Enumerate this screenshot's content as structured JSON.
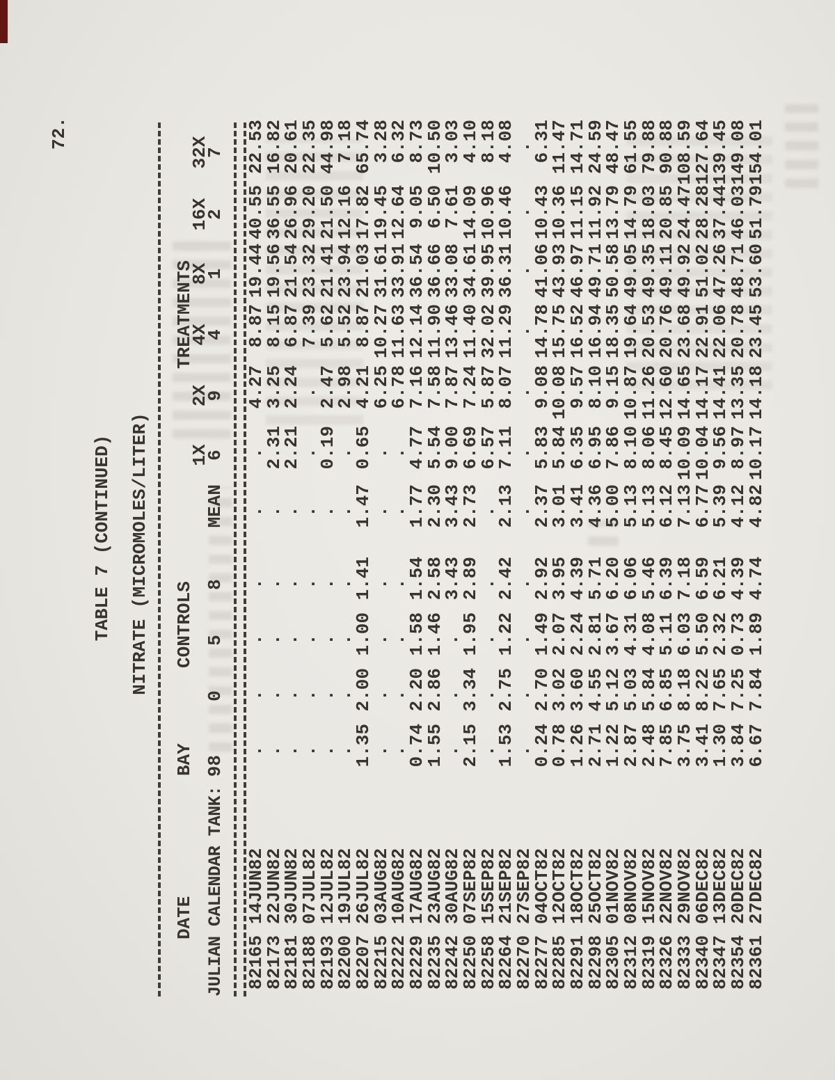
{
  "page": {
    "number": "72."
  },
  "table": {
    "title_line1": "TABLE 7 (CONTINUED)",
    "title_line2": "NITRATE (MICROMOLES/LITER)",
    "groups": {
      "date": "DATE",
      "bay": "BAY",
      "controls": "CONTROLS",
      "treatments": "TREATMENTS"
    },
    "treatment_labels": [
      "1X",
      "2X",
      "4X",
      "8X",
      "16X",
      "32X"
    ],
    "row_header_label": "JULIAN CALENDAR TANK:",
    "tank_numbers": [
      "98",
      "0",
      "5",
      "8",
      "MEAN",
      "6",
      "9",
      "4",
      "1",
      "2",
      "7"
    ],
    "missing_symbol": ".",
    "rows": [
      {
        "julian": "82165",
        "date": "14JUN82",
        "values": [
          ".  ",
          ".  ",
          ".  ",
          ".  ",
          ".  ",
          ".  ",
          "4.27",
          "8.87",
          "19.44",
          "40.55",
          "22.53"
        ]
      },
      {
        "julian": "82173",
        "date": "22JUN82",
        "values": [
          ".  ",
          ".  ",
          ".  ",
          ".  ",
          ".  ",
          "2.31",
          "3.25",
          "8.15",
          "19.56",
          "36.55",
          "16.82"
        ]
      },
      {
        "julian": "82181",
        "date": "30JUN82",
        "values": [
          ".  ",
          ".  ",
          ".  ",
          ".  ",
          ".  ",
          "2.21",
          "2.24",
          "6.87",
          "21.54",
          "26.96",
          "20.61"
        ]
      },
      {
        "julian": "82188",
        "date": "07JUL82",
        "values": [
          ".  ",
          ".  ",
          ".  ",
          ".  ",
          ".  ",
          ".  ",
          ".  ",
          "7.39",
          "23.32",
          "29.20",
          "22.35"
        ]
      },
      {
        "julian": "82193",
        "date": "12JUL82",
        "values": [
          ".  ",
          ".  ",
          ".  ",
          ".  ",
          ".  ",
          "0.19",
          "2.47",
          "5.62",
          "21.41",
          "21.50",
          "44.98"
        ]
      },
      {
        "julian": "82200",
        "date": "19JUL82",
        "values": [
          ".  ",
          ".  ",
          ".  ",
          ".  ",
          ".  ",
          ".  ",
          "2.98",
          "5.52",
          "23.94",
          "12.16",
          "7.18"
        ]
      },
      {
        "julian": "82207",
        "date": "26JUL82",
        "values": [
          "1.35",
          "2.00",
          "1.00",
          "1.41",
          "1.47",
          "0.65",
          "4.21",
          "8.87",
          "21.03",
          "17.82",
          "65.74"
        ]
      },
      {
        "julian": "82215",
        "date": "03AUG82",
        "values": [
          ".  ",
          ".  ",
          ".  ",
          ".  ",
          ".  ",
          ".  ",
          "6.25",
          "10.27",
          "31.61",
          "19.45",
          "3.28"
        ]
      },
      {
        "julian": "82222",
        "date": "10AUG82",
        "values": [
          ".  ",
          ".  ",
          ".  ",
          ".  ",
          ".  ",
          ".  ",
          "6.78",
          "11.63",
          "33.91",
          "12.64",
          "6.32"
        ]
      },
      {
        "julian": "82229",
        "date": "17AUG82",
        "values": [
          "0.74",
          "2.20",
          "1.58",
          "1.54",
          "1.77",
          "4.77",
          "7.16",
          "12.14",
          "36.54",
          "9.05",
          "8.73"
        ]
      },
      {
        "julian": "82235",
        "date": "23AUG82",
        "values": [
          "1.55",
          "2.86",
          "1.46",
          "2.58",
          "2.30",
          "5.54",
          "7.58",
          "11.90",
          "36.66",
          "6.50",
          "10.50"
        ]
      },
      {
        "julian": "82242",
        "date": "30AUG82",
        "values": [
          ".  ",
          ".  ",
          ".  ",
          "3.43",
          "3.43",
          "9.00",
          "7.87",
          "13.46",
          "33.08",
          "7.61",
          "3.03"
        ]
      },
      {
        "julian": "82250",
        "date": "07SEP82",
        "values": [
          "2.15",
          "3.34",
          "1.95",
          "2.89",
          "2.73",
          "6.69",
          "7.24",
          "11.40",
          "34.61",
          "14.09",
          "4.10"
        ]
      },
      {
        "julian": "82258",
        "date": "15SEP82",
        "values": [
          ".  ",
          ".  ",
          ".  ",
          ".  ",
          ".  ",
          "6.57",
          "5.87",
          "32.02",
          "39.95",
          "10.96",
          "8.18"
        ]
      },
      {
        "julian": "82264",
        "date": "21SEP82",
        "values": [
          "1.53",
          "2.75",
          "1.22",
          "2.42",
          "2.13",
          "7.11",
          "8.07",
          "11.29",
          "36.31",
          "10.46",
          "4.08"
        ]
      },
      {
        "julian": "82270",
        "date": "27SEP82",
        "values": [
          ".  ",
          ".  ",
          ".  ",
          ".  ",
          ".  ",
          ".  ",
          ".  ",
          ".  ",
          ".  ",
          ".  ",
          ".  "
        ]
      },
      {
        "julian": "82277",
        "date": "04OCT82",
        "values": [
          "0.24",
          "2.70",
          "1.49",
          "2.92",
          "2.37",
          "5.83",
          "9.08",
          "14.78",
          "41.06",
          "10.43",
          "6.31"
        ]
      },
      {
        "julian": "82285",
        "date": "12OCT82",
        "values": [
          "0.78",
          "3.02",
          "2.07",
          "3.95",
          "3.01",
          "5.84",
          "10.08",
          "15.75",
          "43.93",
          "10.36",
          "11.47"
        ]
      },
      {
        "julian": "82291",
        "date": "18OCT82",
        "values": [
          "1.26",
          "3.60",
          "2.24",
          "4.39",
          "3.41",
          "6.35",
          "9.57",
          "16.52",
          "46.97",
          "11.15",
          "14.71"
        ]
      },
      {
        "julian": "82298",
        "date": "25OCT82",
        "values": [
          "2.71",
          "4.55",
          "2.81",
          "5.71",
          "4.36",
          "6.95",
          "8.10",
          "16.94",
          "49.71",
          "11.92",
          "24.59"
        ]
      },
      {
        "julian": "82305",
        "date": "01NOV82",
        "values": [
          "1.22",
          "5.12",
          "3.67",
          "6.20",
          "5.00",
          "7.86",
          "9.15",
          "18.35",
          "50.58",
          "13.79",
          "48.47"
        ]
      },
      {
        "julian": "82312",
        "date": "08NOV82",
        "values": [
          "2.87",
          "5.03",
          "4.31",
          "6.06",
          "5.13",
          "8.10",
          "10.87",
          "19.64",
          "49.05",
          "14.79",
          "61.55"
        ]
      },
      {
        "julian": "82319",
        "date": "15NOV82",
        "values": [
          "2.48",
          "5.84",
          "4.08",
          "5.46",
          "5.13",
          "8.06",
          "11.26",
          "20.53",
          "49.35",
          "18.03",
          "79.88"
        ]
      },
      {
        "julian": "82326",
        "date": "22NOV82",
        "values": [
          "7.85",
          "6.85",
          "5.11",
          "6.39",
          "6.12",
          "8.45",
          "12.60",
          "20.76",
          "49.11",
          "20.85",
          "90.88"
        ]
      },
      {
        "julian": "82333",
        "date": "29NOV82",
        "values": [
          "3.75",
          "8.18",
          "6.03",
          "7.18",
          "7.13",
          "10.09",
          "14.65",
          "23.68",
          "49.92",
          "24.47",
          "108.59"
        ]
      },
      {
        "julian": "82340",
        "date": "06DEC82",
        "values": [
          "3.41",
          "8.22",
          "5.50",
          "6.59",
          "6.77",
          "10.04",
          "14.17",
          "22.91",
          "51.02",
          "28.28",
          "127.64"
        ]
      },
      {
        "julian": "82347",
        "date": "13DEC82",
        "values": [
          "1.30",
          "7.65",
          "2.32",
          "6.21",
          "5.39",
          "9.56",
          "14.41",
          "22.06",
          "47.26",
          "37.44",
          "139.45"
        ]
      },
      {
        "julian": "82354",
        "date": "20DEC82",
        "values": [
          "3.84",
          "7.25",
          "0.73",
          "4.39",
          "4.12",
          "8.97",
          "13.35",
          "20.78",
          "48.71",
          "46.03",
          "149.08"
        ]
      },
      {
        "julian": "82361",
        "date": "27DEC82",
        "values": [
          "6.67",
          "7.84",
          "1.89",
          "4.74",
          "4.82",
          "10.17",
          "14.18",
          "23.45",
          "53.60",
          "51.79",
          "154.01"
        ]
      }
    ]
  }
}
